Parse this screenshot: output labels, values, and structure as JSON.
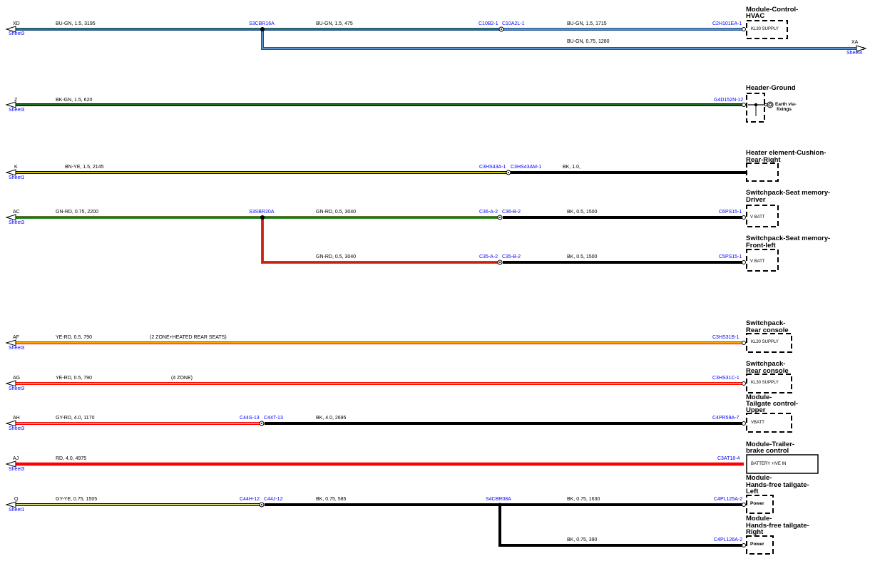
{
  "colors": {
    "blue": "#1f4e8c",
    "light_blue": "#6fa8dc",
    "green": "#2e8b2e",
    "yellow": "#f2e600",
    "red": "#ff0000",
    "black": "#000000",
    "label_blue": "#0000ff"
  },
  "wires": [
    {
      "ref": "XD",
      "sheet": "Sheet3",
      "label": "BU-GN,  1.5,  3195",
      "splice": "S3CBR16A",
      "label2": "BU-GN,  1.5,  475",
      "conn_a": "C10B2-1",
      "conn_b": "C10A2L-1",
      "label3": "BU-GN,  1.5,  1715",
      "pin": "C2H101EA-1",
      "component": "Module-Control-\nHVAC",
      "box_text": "KL30 SUPPLY"
    },
    {
      "branch_label": "BU-GN,  0.75,  1280",
      "ref": "XA",
      "sheet": "Sheet4"
    },
    {
      "ref": "Z",
      "sheet": "Sheet3",
      "label": "BK-GN,  1.5,  620",
      "pin": "G4D152N-12",
      "component": "Header-Ground",
      "ground_label": "Earth via-\nfixings"
    },
    {
      "ref": "K",
      "sheet": "Sheet1",
      "label": "BN-YE,  1.5,  2145",
      "conn_a": "C3HS43A-1",
      "conn_b": "C3HS43AM-1",
      "label3": "BK,  1.0,",
      "component": "Heater element-Cushion-\nRear-Right"
    },
    {
      "ref": "AC",
      "sheet": "Sheet3",
      "label": "GN-RD,  0.75,  2200",
      "splice": "S3SBR20A",
      "label2": "GN-RD,  0.5,  3040",
      "conn_a": "C36-A-2",
      "conn_b": "C36-B-2",
      "label3": "BK,  0.5,  1500",
      "pin": "C6PS15-1",
      "component": "Switchpack-Seat memory-\nDriver",
      "box_text": "V BATT"
    },
    {
      "label2": "GN-RD,  0.5,  3040",
      "conn_a": "C35-A-2",
      "conn_b": "C35-B-2",
      "label3": "BK,  0.5,  1500",
      "pin": "C5PS15-1",
      "component": "Switchpack-Seat memory-\nFront-left",
      "box_text": "V BATT"
    },
    {
      "ref": "AF",
      "sheet": "Sheet3",
      "label": "YE-RD,  0.5,  790",
      "note": "(2 ZONE+HEATED REAR SEATS)",
      "pin": "C3HS31B-1",
      "component": "Switchpack-\nRear console",
      "box_text": "KL30 SUPPLY"
    },
    {
      "ref": "AG",
      "sheet": "Sheet3",
      "label": "YE-RD,  0.5,  790",
      "note": "(4 ZONE)",
      "pin": "C3HS31C-1",
      "component": "Switchpack-\nRear console",
      "box_text": "KL30 SUPPLY"
    },
    {
      "ref": "AH",
      "sheet": "Sheet3",
      "label": "GY-RD,  4.0,  1170",
      "conn_a": "C44S-13",
      "conn_b": "C44T-13",
      "label3": "BK,  4.0,  2695",
      "pin": "C4PR59A-7",
      "component": "Module-\nTailgate control-\nUpper",
      "box_text": "VBATT"
    },
    {
      "ref": "AJ",
      "sheet": "Sheet3",
      "label": "RD,  4.0,  4975",
      "pin": "C3AT18-4",
      "component": "Module-Trailer-\nbrake control",
      "box_text": "BATTERY +IVE IN"
    },
    {
      "ref": "Q",
      "sheet": "Sheet1",
      "label": "GY-YE,  0.75,  1505",
      "conn_a": "C44H-12",
      "conn_b": "C44J-12",
      "label2": "BK,  0.75,  585",
      "splice": "S4CBR08A",
      "label3": "BK,  0.75,  1630",
      "pin": "C4PL125A-2",
      "component": "Module-\nHands-free tailgate-\nLeft",
      "box_text": "Power"
    },
    {
      "label3": "BK,  0.75,  390",
      "pin": "C4PL126A-2",
      "component": "Module-\nHands-free tailgate-\nRight",
      "box_text": "Power"
    }
  ]
}
